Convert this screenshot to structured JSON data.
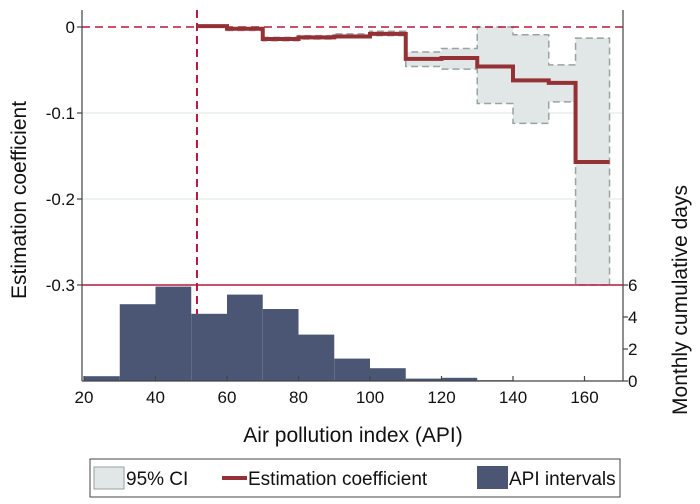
{
  "chart_data": {
    "type": "bar",
    "title": "",
    "xlabel": "Air pollution index (API)",
    "ylabel": "Estimation coefficient",
    "y2label": "Monthly cumulative days",
    "xlim": [
      20,
      170
    ],
    "ylim": [
      -0.4,
      0
    ],
    "y2lim": [
      0,
      6
    ],
    "x_ticks": [
      20,
      40,
      60,
      80,
      100,
      120,
      140,
      160
    ],
    "y_ticks": [
      0,
      -0.1,
      -0.2,
      -0.3
    ],
    "y_tick_labels": [
      "0",
      "-0.1",
      "-0.2",
      "-0.3"
    ],
    "y2_ticks": [
      0,
      2,
      4,
      6
    ],
    "grid": true,
    "legend_position": "bottom",
    "reference_lines": {
      "horizontal_zero": 0,
      "horizontal_separator": -0.3,
      "vertical_threshold": 51.6
    },
    "series": [
      {
        "name": "API intervals",
        "type": "histogram",
        "axis": "right",
        "bins": [
          {
            "from": 20,
            "to": 30,
            "value": 0.3
          },
          {
            "from": 30,
            "to": 40,
            "value": 4.8
          },
          {
            "from": 40,
            "to": 50,
            "value": 5.9
          },
          {
            "from": 50,
            "to": 60,
            "value": 4.2
          },
          {
            "from": 60,
            "to": 70,
            "value": 5.4
          },
          {
            "from": 70,
            "to": 80,
            "value": 4.5
          },
          {
            "from": 80,
            "to": 90,
            "value": 2.9
          },
          {
            "from": 90,
            "to": 100,
            "value": 1.4
          },
          {
            "from": 100,
            "to": 110,
            "value": 0.8
          },
          {
            "from": 110,
            "to": 120,
            "value": 0.15
          },
          {
            "from": 120,
            "to": 130,
            "value": 0.2
          },
          {
            "from": 130,
            "to": 140,
            "value": 0.05
          }
        ]
      },
      {
        "name": "95% CI",
        "type": "band",
        "axis": "left",
        "steps": [
          {
            "from": 51.6,
            "to": 60,
            "upper": 0.002,
            "lower": 0.0
          },
          {
            "from": 60,
            "to": 70,
            "upper": -0.001,
            "lower": -0.004
          },
          {
            "from": 70,
            "to": 80,
            "upper": -0.012,
            "lower": -0.016
          },
          {
            "from": 80,
            "to": 90,
            "upper": -0.01,
            "lower": -0.014
          },
          {
            "from": 90,
            "to": 100,
            "upper": -0.008,
            "lower": -0.012
          },
          {
            "from": 100,
            "to": 110,
            "upper": -0.005,
            "lower": -0.01
          },
          {
            "from": 110,
            "to": 120,
            "upper": -0.029,
            "lower": -0.046
          },
          {
            "from": 120,
            "to": 130,
            "upper": -0.025,
            "lower": -0.049
          },
          {
            "from": 130,
            "to": 140,
            "upper": 0.0,
            "lower": -0.089
          },
          {
            "from": 140,
            "to": 150,
            "upper": -0.009,
            "lower": -0.112
          },
          {
            "from": 150,
            "to": 157.5,
            "upper": -0.044,
            "lower": -0.087
          },
          {
            "from": 157.5,
            "to": 167,
            "upper": -0.013,
            "lower": -0.3
          }
        ]
      },
      {
        "name": "Estimation coefficient",
        "type": "step",
        "axis": "left",
        "steps": [
          {
            "from": 51.6,
            "to": 60,
            "value": 0.001
          },
          {
            "from": 60,
            "to": 70,
            "value": -0.002
          },
          {
            "from": 70,
            "to": 80,
            "value": -0.014
          },
          {
            "from": 80,
            "to": 90,
            "value": -0.012
          },
          {
            "from": 90,
            "to": 100,
            "value": -0.011
          },
          {
            "from": 100,
            "to": 110,
            "value": -0.008
          },
          {
            "from": 110,
            "to": 120,
            "value": -0.037
          },
          {
            "from": 120,
            "to": 130,
            "value": -0.036
          },
          {
            "from": 130,
            "to": 140,
            "value": -0.046
          },
          {
            "from": 140,
            "to": 150,
            "value": -0.062
          },
          {
            "from": 150,
            "to": 157.5,
            "value": -0.065
          },
          {
            "from": 157.5,
            "to": 167,
            "value": -0.157
          }
        ]
      }
    ],
    "legend": [
      {
        "label": "95% CI",
        "kind": "swatch",
        "color": "#e1e7e6"
      },
      {
        "label": "Estimation coefficient",
        "kind": "line",
        "color": "#953134"
      },
      {
        "label": "API intervals",
        "kind": "swatch",
        "color": "#4a5673"
      }
    ]
  },
  "colors": {
    "coef": "#953134",
    "ci_fill": "#e1e7e6",
    "ci_stroke": "#9aa2a2",
    "hist": "#4a5673",
    "ref_line": "#b5193e",
    "grid": "#e7eeef",
    "axis": "#444444"
  }
}
